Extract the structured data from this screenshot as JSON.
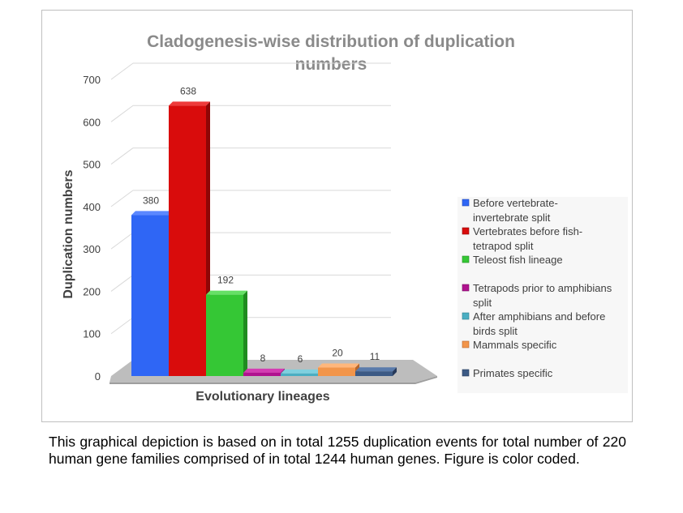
{
  "chart_data": {
    "type": "bar",
    "title": "Cladogenesis-wise distribution of duplication numbers",
    "title_lines": [
      "Cladogenesis-wise distribution of duplication",
      "numbers"
    ],
    "xlabel": "Evolutionary lineages",
    "ylabel": "Duplication numbers",
    "ylim": [
      0,
      700
    ],
    "yticks": [
      "0",
      "100",
      "200",
      "300",
      "400",
      "500",
      "600",
      "700"
    ],
    "grid": true,
    "legend_position": "right",
    "series": [
      {
        "name": "Before vertebrate-invertebrate split",
        "legend_lines": [
          "Before vertebrate-",
          "invertebrate split"
        ],
        "value": 380,
        "label": "380",
        "color": "#2f66f5",
        "dark": "#1e47b8",
        "light": "#5b88ff"
      },
      {
        "name": "Vertebrates before fish-tetrapod split",
        "legend_lines": [
          "Vertebrates before fish-",
          "tetrapod split"
        ],
        "value": 638,
        "label": "638",
        "color": "#d90c0c",
        "dark": "#8f0606",
        "light": "#ee3a3a"
      },
      {
        "name": "Teleost fish lineage",
        "legend_lines": [
          "Teleost fish lineage"
        ],
        "value": 192,
        "label": "192",
        "color": "#35c735",
        "dark": "#1f8c1f",
        "light": "#66e066"
      },
      {
        "name": "Tetrapods prior to amphibians split",
        "legend_lines": [
          "Tetrapods prior to amphibians",
          "split"
        ],
        "value": 8,
        "label": "8",
        "color": "#b0128f",
        "dark": "#780b61",
        "light": "#d43cb2"
      },
      {
        "name": "After amphibians and before birds split",
        "legend_lines": [
          "After amphibians and before",
          "birds split"
        ],
        "value": 6,
        "label": "6",
        "color": "#4aaec2",
        "dark": "#2d7d8d",
        "light": "#7fd0df"
      },
      {
        "name": "Mammals specific",
        "legend_lines": [
          "Mammals specific"
        ],
        "value": 20,
        "label": "20",
        "color": "#f2954a",
        "dark": "#b8662a",
        "light": "#ffb77c"
      },
      {
        "name": "Primates specific",
        "legend_lines": [
          "Primates specific"
        ],
        "value": 11,
        "label": "11",
        "color": "#3c5a85",
        "dark": "#26395a",
        "light": "#5a7bab"
      }
    ]
  },
  "caption": "This graphical depiction is based on in total 1255 duplication events for total number of 220 human gene families comprised of in total 1244 human genes. Figure is color coded."
}
